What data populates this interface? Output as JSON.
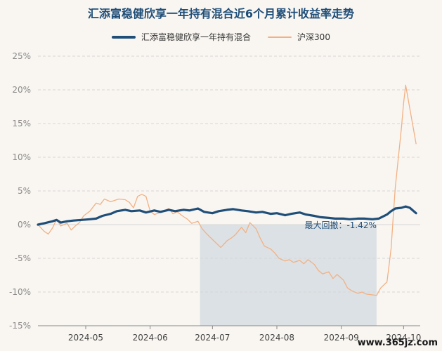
{
  "chart_data": {
    "type": "line",
    "title": "汇添富稳健欣享一年持有混合近6个月累计收益率走势",
    "y_unit": "%",
    "ylim": [
      -15,
      25
    ],
    "yticks": [
      25,
      20,
      15,
      10,
      5,
      0,
      -5,
      -10,
      -15
    ],
    "ytick_labels": [
      "25%",
      "20%",
      "15%",
      "10%",
      "5%",
      "0%",
      "-5%",
      "-10%",
      "-15%"
    ],
    "xlim": [
      "2024-04-08",
      "2024-10-09"
    ],
    "x_ticks": [
      "2024-05-01",
      "2024-06-01",
      "2024-07-01",
      "2024-08-01",
      "2024-09-01",
      "2024-10-01"
    ],
    "x_tick_labels": [
      "2024-05",
      "2024-06",
      "2024-07",
      "2024-08",
      "2024-09",
      "2024-10"
    ],
    "grid": true,
    "legend_position": "top",
    "series": [
      {
        "name": "汇添富稳健欣享一年持有混合",
        "color": "#1f4e79",
        "points": [
          [
            "2024-04-08",
            0
          ],
          [
            "2024-04-11",
            0.2
          ],
          [
            "2024-04-15",
            0.5
          ],
          [
            "2024-04-17",
            0.7
          ],
          [
            "2024-04-19",
            0.3
          ],
          [
            "2024-04-22",
            0.5
          ],
          [
            "2024-04-25",
            0.6
          ],
          [
            "2024-04-29",
            0.7
          ],
          [
            "2024-05-03",
            0.8
          ],
          [
            "2024-05-06",
            0.9
          ],
          [
            "2024-05-09",
            1.3
          ],
          [
            "2024-05-13",
            1.6
          ],
          [
            "2024-05-16",
            2.0
          ],
          [
            "2024-05-20",
            2.2
          ],
          [
            "2024-05-23",
            2.0
          ],
          [
            "2024-05-27",
            2.1
          ],
          [
            "2024-05-30",
            1.8
          ],
          [
            "2024-06-03",
            2.1
          ],
          [
            "2024-06-06",
            1.9
          ],
          [
            "2024-06-10",
            2.2
          ],
          [
            "2024-06-13",
            2.0
          ],
          [
            "2024-06-17",
            2.2
          ],
          [
            "2024-06-20",
            2.1
          ],
          [
            "2024-06-24",
            2.4
          ],
          [
            "2024-06-27",
            1.9
          ],
          [
            "2024-07-01",
            1.7
          ],
          [
            "2024-07-04",
            2.0
          ],
          [
            "2024-07-08",
            2.2
          ],
          [
            "2024-07-11",
            2.3
          ],
          [
            "2024-07-15",
            2.1
          ],
          [
            "2024-07-18",
            2.0
          ],
          [
            "2024-07-22",
            1.8
          ],
          [
            "2024-07-25",
            1.9
          ],
          [
            "2024-07-29",
            1.6
          ],
          [
            "2024-08-01",
            1.7
          ],
          [
            "2024-08-05",
            1.4
          ],
          [
            "2024-08-08",
            1.6
          ],
          [
            "2024-08-12",
            1.8
          ],
          [
            "2024-08-15",
            1.5
          ],
          [
            "2024-08-19",
            1.3
          ],
          [
            "2024-08-22",
            1.1
          ],
          [
            "2024-08-26",
            1.0
          ],
          [
            "2024-08-29",
            0.9
          ],
          [
            "2024-09-02",
            0.9
          ],
          [
            "2024-09-05",
            0.8
          ],
          [
            "2024-09-09",
            0.9
          ],
          [
            "2024-09-12",
            0.9
          ],
          [
            "2024-09-16",
            0.8
          ],
          [
            "2024-09-19",
            0.9
          ],
          [
            "2024-09-23",
            1.5
          ],
          [
            "2024-09-25",
            2.0
          ],
          [
            "2024-09-27",
            2.4
          ],
          [
            "2024-09-30",
            2.5
          ],
          [
            "2024-10-02",
            2.7
          ],
          [
            "2024-10-04",
            2.5
          ],
          [
            "2024-10-07",
            1.7
          ]
        ]
      },
      {
        "name": "沪深300",
        "color": "#f2b184",
        "points": [
          [
            "2024-04-08",
            0
          ],
          [
            "2024-04-11",
            -1.0
          ],
          [
            "2024-04-13",
            -1.4
          ],
          [
            "2024-04-15",
            -0.5
          ],
          [
            "2024-04-17",
            0.8
          ],
          [
            "2024-04-19",
            -0.2
          ],
          [
            "2024-04-22",
            0.2
          ],
          [
            "2024-04-24",
            -0.8
          ],
          [
            "2024-04-26",
            -0.2
          ],
          [
            "2024-04-28",
            0.3
          ],
          [
            "2024-04-30",
            1.3
          ],
          [
            "2024-05-03",
            2.0
          ],
          [
            "2024-05-06",
            3.2
          ],
          [
            "2024-05-08",
            3.0
          ],
          [
            "2024-05-10",
            3.8
          ],
          [
            "2024-05-13",
            3.4
          ],
          [
            "2024-05-15",
            3.6
          ],
          [
            "2024-05-17",
            3.8
          ],
          [
            "2024-05-20",
            3.7
          ],
          [
            "2024-05-22",
            3.3
          ],
          [
            "2024-05-24",
            2.5
          ],
          [
            "2024-05-26",
            4.2
          ],
          [
            "2024-05-28",
            4.5
          ],
          [
            "2024-05-30",
            4.2
          ],
          [
            "2024-06-01",
            2.0
          ],
          [
            "2024-06-03",
            1.5
          ],
          [
            "2024-06-06",
            1.8
          ],
          [
            "2024-06-10",
            2.4
          ],
          [
            "2024-06-12",
            1.6
          ],
          [
            "2024-06-14",
            1.9
          ],
          [
            "2024-06-17",
            1.2
          ],
          [
            "2024-06-19",
            0.8
          ],
          [
            "2024-06-21",
            0.2
          ],
          [
            "2024-06-24",
            0.5
          ],
          [
            "2024-06-26",
            -0.6
          ],
          [
            "2024-06-28",
            -1.3
          ],
          [
            "2024-07-01",
            -2.2
          ],
          [
            "2024-07-03",
            -2.8
          ],
          [
            "2024-07-05",
            -3.4
          ],
          [
            "2024-07-08",
            -2.4
          ],
          [
            "2024-07-10",
            -2.0
          ],
          [
            "2024-07-12",
            -1.5
          ],
          [
            "2024-07-15",
            -0.4
          ],
          [
            "2024-07-17",
            -1.2
          ],
          [
            "2024-07-19",
            0.3
          ],
          [
            "2024-07-22",
            -0.6
          ],
          [
            "2024-07-24",
            -2.0
          ],
          [
            "2024-07-26",
            -3.2
          ],
          [
            "2024-07-29",
            -3.6
          ],
          [
            "2024-07-31",
            -4.2
          ],
          [
            "2024-08-02",
            -5.0
          ],
          [
            "2024-08-05",
            -5.4
          ],
          [
            "2024-08-07",
            -5.2
          ],
          [
            "2024-08-09",
            -5.6
          ],
          [
            "2024-08-12",
            -5.3
          ],
          [
            "2024-08-14",
            -5.8
          ],
          [
            "2024-08-16",
            -5.2
          ],
          [
            "2024-08-19",
            -5.9
          ],
          [
            "2024-08-21",
            -6.8
          ],
          [
            "2024-08-23",
            -7.3
          ],
          [
            "2024-08-26",
            -7.0
          ],
          [
            "2024-08-28",
            -8.0
          ],
          [
            "2024-08-30",
            -7.4
          ],
          [
            "2024-09-02",
            -8.2
          ],
          [
            "2024-09-04",
            -9.4
          ],
          [
            "2024-09-06",
            -9.8
          ],
          [
            "2024-09-09",
            -10.2
          ],
          [
            "2024-09-11",
            -10.0
          ],
          [
            "2024-09-13",
            -10.3
          ],
          [
            "2024-09-18",
            -10.5
          ],
          [
            "2024-09-20",
            -9.4
          ],
          [
            "2024-09-23",
            -8.5
          ],
          [
            "2024-09-24",
            -6.0
          ],
          [
            "2024-09-25",
            -3.5
          ],
          [
            "2024-09-26",
            1.2
          ],
          [
            "2024-09-27",
            5.5
          ],
          [
            "2024-09-30",
            14.5
          ],
          [
            "2024-10-01",
            18.0
          ],
          [
            "2024-10-02",
            20.7
          ],
          [
            "2024-10-07",
            12.0
          ]
        ]
      }
    ],
    "annotation": {
      "label": "最大回撤：-1.42%",
      "shaded_span": [
        "2024-06-25",
        "2024-09-18"
      ],
      "shade_color": "#c5cfda"
    }
  },
  "watermark": "www.365jz.com"
}
